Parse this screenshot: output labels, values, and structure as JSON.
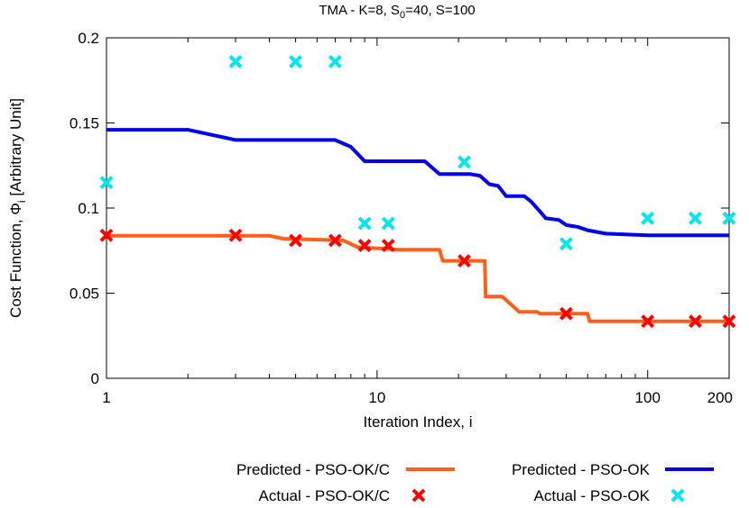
{
  "chart_data": {
    "type": "line",
    "title_main": "TMA - K=8, S",
    "title_sub": "0",
    "title_rest": "=40, S=100",
    "xlabel": "Iteration Index, i",
    "ylabel_main": "Cost Function, Φ",
    "ylabel_sub": "i",
    "ylabel_rest": " [Arbitrary Unit]",
    "x_scale": "log",
    "xlim": [
      1,
      200
    ],
    "ylim": [
      0,
      0.2
    ],
    "x_ticks": [
      1,
      10,
      100,
      200
    ],
    "x_tick_labels": [
      "1",
      "10",
      "100",
      "200"
    ],
    "y_ticks": [
      0,
      0.05,
      0.1,
      0.15,
      0.2
    ],
    "y_tick_labels": [
      "0",
      "0.05",
      "0.1",
      "0.15",
      "0.2"
    ],
    "grid": false,
    "legend_placement": "below",
    "series": [
      {
        "name": "Predicted - PSO-OK/C",
        "kind": "line",
        "color": "#ff5f1a",
        "points": [
          [
            1,
            0.0837
          ],
          [
            4,
            0.0837
          ],
          [
            4.5,
            0.082
          ],
          [
            7.5,
            0.081
          ],
          [
            8.5,
            0.077
          ],
          [
            11,
            0.076
          ],
          [
            12,
            0.0755
          ],
          [
            17,
            0.0755
          ],
          [
            17.5,
            0.069
          ],
          [
            25,
            0.069
          ],
          [
            25.2,
            0.048
          ],
          [
            29,
            0.048
          ],
          [
            30,
            0.046
          ],
          [
            32,
            0.042
          ],
          [
            33.5,
            0.039
          ],
          [
            39,
            0.039
          ],
          [
            40,
            0.038
          ],
          [
            60,
            0.038
          ],
          [
            61,
            0.0335
          ],
          [
            200,
            0.0335
          ]
        ]
      },
      {
        "name": "Predicted - PSO-OK",
        "kind": "line",
        "color": "#0000ee",
        "points": [
          [
            1,
            0.146
          ],
          [
            2,
            0.146
          ],
          [
            3,
            0.14
          ],
          [
            7,
            0.14
          ],
          [
            8,
            0.136
          ],
          [
            9,
            0.1275
          ],
          [
            15,
            0.1275
          ],
          [
            17,
            0.12
          ],
          [
            22,
            0.12
          ],
          [
            24,
            0.119
          ],
          [
            26,
            0.114
          ],
          [
            28,
            0.113
          ],
          [
            30,
            0.107
          ],
          [
            35,
            0.107
          ],
          [
            37,
            0.104
          ],
          [
            40,
            0.098
          ],
          [
            42,
            0.094
          ],
          [
            47,
            0.093
          ],
          [
            50,
            0.09
          ],
          [
            55,
            0.089
          ],
          [
            60,
            0.087
          ],
          [
            70,
            0.085
          ],
          [
            100,
            0.084
          ],
          [
            200,
            0.084
          ]
        ]
      },
      {
        "name": "Actual - PSO-OK/C",
        "kind": "points",
        "color": "#ff0000",
        "points": [
          [
            1,
            0.084
          ],
          [
            3,
            0.084
          ],
          [
            5,
            0.081
          ],
          [
            7,
            0.081
          ],
          [
            9,
            0.078
          ],
          [
            11,
            0.078
          ],
          [
            21,
            0.069
          ],
          [
            50,
            0.038
          ],
          [
            100,
            0.0335
          ],
          [
            150,
            0.0335
          ],
          [
            200,
            0.0335
          ]
        ]
      },
      {
        "name": "Actual - PSO-OK",
        "kind": "points",
        "color": "#00e5ee",
        "points": [
          [
            1,
            0.115
          ],
          [
            3,
            0.186
          ],
          [
            5,
            0.186
          ],
          [
            7,
            0.186
          ],
          [
            9,
            0.091
          ],
          [
            11,
            0.091
          ],
          [
            21,
            0.127
          ],
          [
            50,
            0.079
          ],
          [
            100,
            0.094
          ],
          [
            150,
            0.094
          ],
          [
            200,
            0.094
          ]
        ]
      }
    ]
  }
}
